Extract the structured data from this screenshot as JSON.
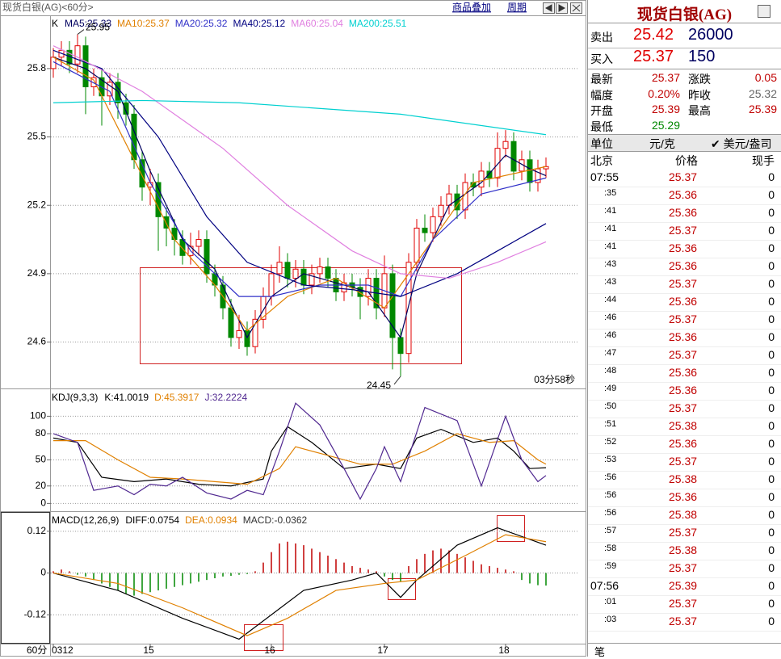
{
  "header": {
    "title": "现货白银(AG)<60分>",
    "links": [
      "商品叠加",
      "周期"
    ]
  },
  "chart_data": [
    {
      "type": "candlestick",
      "corner_label": "K",
      "timer": "03分58秒",
      "period": "60分",
      "annotations": [
        {
          "text": "25.95",
          "index": 3
        },
        {
          "text": "24.45",
          "index": 43
        }
      ],
      "categories": [
        "0312",
        null,
        null,
        null,
        null,
        null,
        null,
        null,
        null,
        null,
        null,
        null,
        "15",
        null,
        null,
        null,
        null,
        null,
        null,
        null,
        null,
        null,
        null,
        null,
        null,
        null,
        null,
        "16",
        null,
        null,
        null,
        null,
        null,
        null,
        null,
        null,
        null,
        null,
        null,
        null,
        null,
        "17",
        null,
        null,
        null,
        null,
        null,
        null,
        null,
        null,
        null,
        null,
        null,
        null,
        null,
        null,
        "18",
        null,
        null,
        null,
        null,
        null
      ],
      "open": [
        25.8,
        25.85,
        25.88,
        25.82,
        25.9,
        25.72,
        25.76,
        25.68,
        25.74,
        25.65,
        25.6,
        25.4,
        25.28,
        25.3,
        25.15,
        25.1,
        25.05,
        24.98,
        25.02,
        25.05,
        24.9,
        24.85,
        24.75,
        24.62,
        24.65,
        24.58,
        24.7,
        24.8,
        24.9,
        24.95,
        24.88,
        24.92,
        24.85,
        24.9,
        24.93,
        24.88,
        24.82,
        24.86,
        24.84,
        24.8,
        24.88,
        24.75,
        24.9,
        24.62,
        24.55,
        24.95,
        25.1,
        25.08,
        25.15,
        25.2,
        25.25,
        25.18,
        25.3,
        25.28,
        25.35,
        25.32,
        25.45,
        25.48,
        25.35,
        25.4,
        25.3,
        25.36
      ],
      "high": [
        25.89,
        25.92,
        25.92,
        25.95,
        25.94,
        25.8,
        25.8,
        25.78,
        25.78,
        25.69,
        25.64,
        25.44,
        25.36,
        25.34,
        25.19,
        25.14,
        25.09,
        25.08,
        25.09,
        25.09,
        24.94,
        24.89,
        24.79,
        24.72,
        24.69,
        24.74,
        24.84,
        24.94,
        25.02,
        24.99,
        24.96,
        24.96,
        24.94,
        24.97,
        24.97,
        24.92,
        24.9,
        24.9,
        24.88,
        24.92,
        24.92,
        24.98,
        24.94,
        24.66,
        24.99,
        25.14,
        25.16,
        25.19,
        25.24,
        25.29,
        25.29,
        25.34,
        25.34,
        25.39,
        25.39,
        25.52,
        25.53,
        25.52,
        25.44,
        25.44,
        25.4,
        25.41
      ],
      "low": [
        25.76,
        25.81,
        25.78,
        25.78,
        25.6,
        25.68,
        25.55,
        25.64,
        25.58,
        25.55,
        25.36,
        25.22,
        25.2,
        25.0,
        25.02,
        24.98,
        24.94,
        24.94,
        24.98,
        24.86,
        24.8,
        24.7,
        24.58,
        24.57,
        24.54,
        24.55,
        24.66,
        24.76,
        24.86,
        24.84,
        24.84,
        24.81,
        24.81,
        24.86,
        24.84,
        24.78,
        24.78,
        24.8,
        24.7,
        24.76,
        24.7,
        24.71,
        24.48,
        24.45,
        24.51,
        24.91,
        25.04,
        25.04,
        25.11,
        25.16,
        25.14,
        25.14,
        25.24,
        25.24,
        25.28,
        25.28,
        25.41,
        25.31,
        25.31,
        25.26,
        25.26,
        25.32
      ],
      "close": [
        25.85,
        25.88,
        25.82,
        25.9,
        25.72,
        25.76,
        25.68,
        25.74,
        25.65,
        25.6,
        25.4,
        25.28,
        25.3,
        25.15,
        25.1,
        25.05,
        24.98,
        25.02,
        25.05,
        24.9,
        24.85,
        24.75,
        24.62,
        24.65,
        24.58,
        24.7,
        24.8,
        24.9,
        24.95,
        24.88,
        24.92,
        24.85,
        24.9,
        24.93,
        24.88,
        24.82,
        24.86,
        24.84,
        24.8,
        24.88,
        24.75,
        24.9,
        24.62,
        24.55,
        24.95,
        25.1,
        25.08,
        25.15,
        25.2,
        25.25,
        25.18,
        25.3,
        25.28,
        25.35,
        25.32,
        25.45,
        25.48,
        25.35,
        25.4,
        25.3,
        25.36,
        25.37
      ],
      "up_color": "#e00000",
      "down_color": "#008800",
      "ylim": [
        24.4,
        26.03
      ],
      "yticks": [
        24.6,
        24.9,
        25.2,
        25.5,
        25.8
      ],
      "grid": true,
      "series": [
        {
          "name": "MA5:25.33",
          "color": "#000060",
          "x": [
            0,
            4,
            8,
            12,
            16,
            20,
            24,
            27,
            31,
            35,
            39,
            43,
            45,
            49,
            53,
            56,
            59,
            61
          ],
          "values": [
            25.85,
            25.8,
            25.7,
            25.35,
            25.05,
            24.92,
            24.62,
            24.8,
            24.9,
            24.86,
            24.82,
            24.62,
            24.9,
            25.2,
            25.3,
            25.42,
            25.36,
            25.33
          ]
        },
        {
          "name": "MA10:25.37",
          "color": "#e08000",
          "x": [
            0,
            5,
            10,
            15,
            20,
            24,
            29,
            35,
            41,
            46,
            52,
            61
          ],
          "values": [
            25.85,
            25.75,
            25.4,
            25.05,
            24.85,
            24.65,
            24.8,
            24.88,
            24.75,
            25.0,
            25.3,
            25.37
          ]
        },
        {
          "name": "MA20:25.32",
          "color": "#3030c8",
          "x": [
            0,
            7,
            12,
            17,
            23,
            27,
            33,
            39,
            43,
            47,
            53,
            61
          ],
          "values": [
            25.83,
            25.7,
            25.3,
            25.0,
            24.8,
            24.8,
            24.85,
            24.85,
            24.8,
            25.05,
            25.25,
            25.32
          ]
        },
        {
          "name": "MA40:25.12",
          "color": "#000080",
          "x": [
            0,
            6,
            13,
            19,
            24,
            31,
            37,
            43,
            50,
            55,
            61
          ],
          "values": [
            25.88,
            25.8,
            25.5,
            25.15,
            24.95,
            24.85,
            24.83,
            24.8,
            24.9,
            25.0,
            25.12
          ]
        },
        {
          "name": "MA60:25.04",
          "color": "#e080e0",
          "x": [
            0,
            3,
            11,
            21,
            29,
            37,
            43,
            49,
            55,
            61
          ],
          "values": [
            25.9,
            25.85,
            25.7,
            25.45,
            25.2,
            25.0,
            24.9,
            24.88,
            24.95,
            25.04
          ]
        },
        {
          "name": "MA200:25.51",
          "color": "#00d0d0",
          "x": [
            0,
            11,
            23,
            43,
            61
          ],
          "values": [
            25.65,
            25.66,
            25.65,
            25.6,
            25.51
          ]
        }
      ]
    },
    {
      "type": "line",
      "legend_title": "KDJ(9,3,3)",
      "ylim": [
        -8,
        130
      ],
      "yticks": [
        0,
        20,
        50,
        80,
        100
      ],
      "grid": true,
      "series": [
        {
          "name": "K:41.0019",
          "color": "#000000",
          "x": [
            0,
            3,
            6,
            10,
            14,
            18,
            22,
            26,
            27,
            29,
            32,
            36,
            40,
            43,
            45,
            48,
            52,
            55,
            57,
            59,
            61
          ],
          "values": [
            75,
            70,
            30,
            25,
            28,
            22,
            20,
            28,
            60,
            88,
            70,
            40,
            45,
            40,
            75,
            85,
            70,
            75,
            60,
            40,
            41
          ]
        },
        {
          "name": "D:45.3917",
          "color": "#e08000",
          "x": [
            0,
            4,
            8,
            12,
            16,
            20,
            24,
            28,
            30,
            34,
            38,
            42,
            46,
            50,
            54,
            57,
            60,
            61
          ],
          "values": [
            72,
            72,
            50,
            30,
            28,
            25,
            22,
            40,
            65,
            55,
            45,
            45,
            60,
            80,
            70,
            72,
            50,
            45
          ]
        },
        {
          "name": "J:32.2224",
          "color": "#502890",
          "x": [
            0,
            3,
            5,
            8,
            10,
            12,
            14,
            16,
            19,
            22,
            24,
            26,
            28,
            30,
            33,
            36,
            38,
            40,
            41,
            43,
            46,
            50,
            53,
            56,
            58,
            60,
            61
          ],
          "values": [
            80,
            70,
            15,
            20,
            10,
            22,
            20,
            30,
            12,
            5,
            15,
            10,
            60,
            115,
            90,
            40,
            5,
            40,
            65,
            25,
            110,
            95,
            20,
            100,
            50,
            25,
            32
          ]
        }
      ]
    },
    {
      "type": "bar",
      "legend_title": "MACD(12,26,9)",
      "legend_extra": "MACD:-0.0362",
      "up_color": "#c00000",
      "down_color": "#008800",
      "ylim": [
        -0.203,
        0.173
      ],
      "yticks": [
        -0.12,
        0,
        0.12
      ],
      "grid": true,
      "values": [
        0.005,
        0.01,
        0.005,
        -0.005,
        -0.01,
        -0.02,
        -0.03,
        -0.04,
        -0.05,
        -0.06,
        -0.065,
        -0.06,
        -0.055,
        -0.05,
        -0.045,
        -0.04,
        -0.035,
        -0.03,
        -0.025,
        -0.02,
        -0.015,
        -0.01,
        -0.008,
        -0.005,
        -0.003,
        0.005,
        0.03,
        0.06,
        0.085,
        0.09,
        0.085,
        0.08,
        0.07,
        0.06,
        0.05,
        0.04,
        0.03,
        0.02,
        0.015,
        0.01,
        0.005,
        -0.01,
        -0.02,
        -0.025,
        0.02,
        0.04,
        0.055,
        0.065,
        0.07,
        0.065,
        0.055,
        0.045,
        0.035,
        0.025,
        0.02,
        0.015,
        0.01,
        0.005,
        -0.02,
        -0.03,
        -0.035,
        -0.036
      ],
      "series": [
        {
          "name": "DIFF:0.0754",
          "color": "#000000",
          "x": [
            0,
            8,
            16,
            23,
            27,
            31,
            37,
            40,
            43,
            45,
            50,
            55,
            61
          ],
          "values": [
            0.0,
            -0.05,
            -0.13,
            -0.19,
            -0.12,
            -0.05,
            -0.02,
            0.0,
            -0.07,
            -0.02,
            0.08,
            0.13,
            0.08
          ]
        },
        {
          "name": "DEA:0.0934",
          "color": "#e08000",
          "x": [
            0,
            8,
            16,
            24,
            29,
            35,
            41,
            45,
            51,
            56,
            61
          ],
          "values": [
            0.0,
            -0.03,
            -0.1,
            -0.18,
            -0.13,
            -0.05,
            -0.03,
            -0.02,
            0.05,
            0.11,
            0.09
          ]
        }
      ]
    }
  ],
  "quote": {
    "title": "现货白银(AG)",
    "sell": {
      "label": "卖出",
      "price": "25.42",
      "volume": "26000"
    },
    "buy": {
      "label": "买入",
      "price": "25.37",
      "volume": "150"
    },
    "stats": [
      [
        "最新",
        "25.37",
        "涨跌",
        "0.05"
      ],
      [
        "幅度",
        "0.20%",
        "昨收",
        "25.32"
      ],
      [
        "开盘",
        "25.39",
        "最高",
        "25.39"
      ],
      [
        "最低",
        "25.29"
      ]
    ],
    "unit": {
      "label": "单位",
      "cny": "元/克",
      "usd": "✔ 美元/盎司"
    },
    "ticks_header": [
      "北京",
      "价格",
      "现手"
    ],
    "trades": {
      "times": [
        "07:55",
        ":35",
        ":41",
        ":41",
        ":41",
        ":43",
        ":43",
        ":44",
        ":46",
        ":46",
        ":47",
        ":48",
        ":49",
        ":50",
        ":51",
        ":52",
        ":53",
        ":56",
        ":56",
        ":56",
        ":57",
        ":58",
        ":59",
        "07:56",
        ":01",
        ":03"
      ],
      "prices": [
        "25.37",
        "25.36",
        "25.36",
        "25.37",
        "25.36",
        "25.36",
        "25.37",
        "25.36",
        "25.37",
        "25.36",
        "25.37",
        "25.36",
        "25.36",
        "25.37",
        "25.38",
        "25.36",
        "25.37",
        "25.38",
        "25.36",
        "25.38",
        "25.37",
        "25.38",
        "25.37",
        "25.39",
        "25.37",
        "25.37"
      ],
      "volumes": [
        "0",
        "0",
        "0",
        "0",
        "0",
        "0",
        "0",
        "0",
        "0",
        "0",
        "0",
        "0",
        "0",
        "0",
        "0",
        "0",
        "0",
        "0",
        "0",
        "0",
        "0",
        "0",
        "0",
        "0",
        "0",
        "0"
      ]
    },
    "footer": "笔"
  }
}
